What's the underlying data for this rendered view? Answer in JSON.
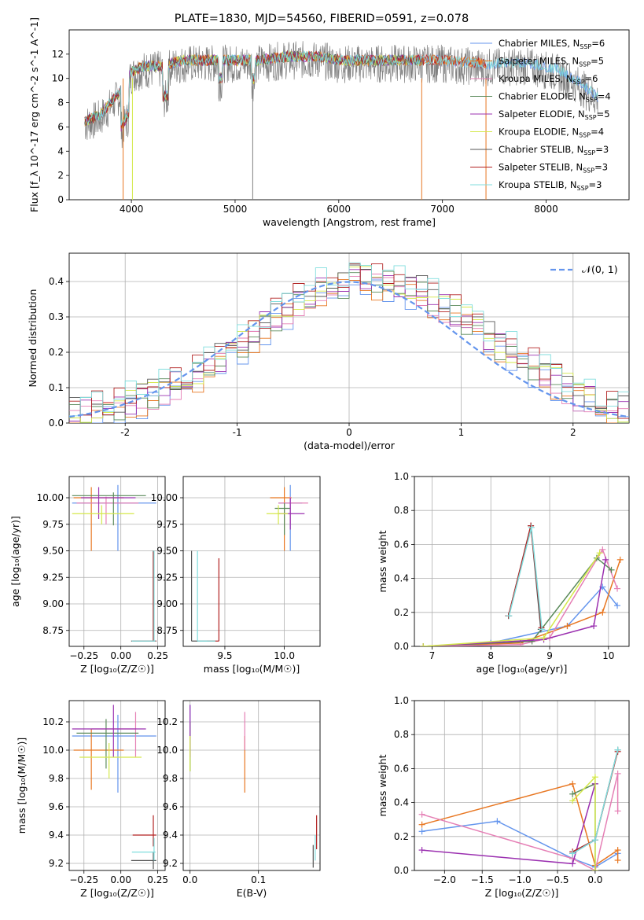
{
  "colors": {
    "series": [
      "#6495ed",
      "#e87722",
      "#e87722",
      "#5a8a5a",
      "#9b30b0",
      "#d4e84a",
      "#555555",
      "#b22222",
      "#80dede"
    ],
    "spec_gray": "#808080",
    "pink": "#e57fb5",
    "purple": "#9b30b0",
    "blue": "#6495ed",
    "orange": "#e87722",
    "yellow": "#d4e84a",
    "green": "#5a8a5a",
    "dark": "#555555",
    "red": "#b22222",
    "cyan": "#80dede",
    "gaussian": "#6495ed",
    "grid": "#b0b0b0"
  },
  "chart_data": [
    {
      "type": "line",
      "title": "PLATE=1830, MJD=54560, FIBERID=0591, z=0.078",
      "xlabel": "wavelength [Angstrom, rest frame]",
      "ylabel": "Flux [f_λ 10^-17 erg cm^-2 s^-1 A^-1]",
      "xlim": [
        3400,
        8800
      ],
      "ylim": [
        0,
        14
      ],
      "xticks": [
        4000,
        5000,
        6000,
        7000,
        8000
      ],
      "yticks": [
        0,
        2,
        4,
        6,
        8,
        10,
        12
      ],
      "grid": false,
      "legend_position": "right",
      "legend": [
        {
          "label": "Chabrier MILES, N",
          "sub": "SSP",
          "n": "=6"
        },
        {
          "label": "Salpeter MILES, N",
          "sub": "SSP",
          "n": "=5"
        },
        {
          "label": "Kroupa MILES, N",
          "sub": "SSP",
          "n": "=6"
        },
        {
          "label": "Chabrier ELODIE, N",
          "sub": "SSP",
          "n": "=4"
        },
        {
          "label": "Salpeter ELODIE, N",
          "sub": "SSP",
          "n": "=5"
        },
        {
          "label": "Kroupa ELODIE, N",
          "sub": "SSP",
          "n": "=4"
        },
        {
          "label": "Chabrier STELIB, N",
          "sub": "SSP",
          "n": "=3"
        },
        {
          "label": "Salpeter STELIB, N",
          "sub": "SSP",
          "n": "=3"
        },
        {
          "label": "Kroupa STELIB, N",
          "sub": "SSP",
          "n": "=3"
        }
      ],
      "spectrum_envelope": {
        "x": [
          3550,
          3700,
          3800,
          3900,
          4000,
          4100,
          4300,
          4500,
          4800,
          5000,
          5200,
          5500,
          5800,
          6000,
          6300,
          6600,
          7000,
          7400,
          7800,
          8100,
          8300,
          8500
        ],
        "y": [
          6.5,
          7.0,
          8.0,
          9.0,
          10.5,
          11.0,
          11.0,
          11.5,
          11.5,
          11.5,
          11.5,
          11.8,
          11.8,
          11.5,
          11.5,
          11.5,
          11.5,
          11.2,
          11.3,
          10.8,
          9.8,
          8.5
        ]
      }
    },
    {
      "type": "bar",
      "title": "",
      "xlabel": "(data-model)/error",
      "ylabel": "Normed distribution",
      "xlim": [
        -2.5,
        2.5
      ],
      "ylim": [
        0,
        0.48
      ],
      "xticks": [
        -2,
        -1,
        0,
        1,
        2
      ],
      "yticks": [
        0.0,
        0.1,
        0.2,
        0.3,
        0.4
      ],
      "grid": true,
      "legend": [
        "𝒩(0, 1)"
      ],
      "legend_position": "top-right",
      "bin_width": 0.1,
      "histogram": [
        0.03,
        0.03,
        0.04,
        0.04,
        0.05,
        0.06,
        0.07,
        0.08,
        0.1,
        0.11,
        0.13,
        0.14,
        0.16,
        0.18,
        0.2,
        0.22,
        0.25,
        0.28,
        0.3,
        0.32,
        0.35,
        0.37,
        0.38,
        0.38,
        0.39,
        0.4,
        0.41,
        0.4,
        0.4,
        0.39,
        0.38,
        0.37,
        0.35,
        0.33,
        0.31,
        0.29,
        0.27,
        0.24,
        0.22,
        0.2,
        0.18,
        0.16,
        0.14,
        0.12,
        0.1,
        0.08,
        0.07,
        0.05,
        0.04,
        0.03
      ]
    },
    {
      "type": "scatter",
      "xlabel": "Z [log₁₀(Z/Z☉)]",
      "ylabel": "age  [log₁₀(age/yr)]",
      "xlim": [
        -0.35,
        0.3
      ],
      "ylim": [
        8.6,
        10.2
      ],
      "xticks": [
        -0.25,
        0.0,
        0.25
      ],
      "xticklabels": [
        "−0.25",
        "0.00",
        "0.25"
      ],
      "yticks": [
        8.75,
        9.0,
        9.25,
        9.5,
        9.75,
        10.0
      ],
      "yticklabels": [
        "8.75",
        "9.00",
        "9.25",
        "9.50",
        "9.75",
        "10.00"
      ],
      "grid": true,
      "errorbars": [
        {
          "x": -0.02,
          "y": 9.95,
          "xerr": [
            0.31,
            0.26
          ],
          "yerr": [
            0.45,
            0.17
          ]
        },
        {
          "x": -0.2,
          "y": 10.0,
          "xerr": [
            0.12,
            0.22
          ],
          "yerr": [
            0.5,
            0.1
          ]
        },
        {
          "x": -0.1,
          "y": 9.95,
          "xerr": [
            0.2,
            0.22
          ],
          "yerr": [
            0.2,
            0.06
          ]
        },
        {
          "x": -0.05,
          "y": 10.02,
          "xerr": [
            0.28,
            0.22
          ],
          "yerr": [
            0.28,
            0.03
          ]
        },
        {
          "x": -0.15,
          "y": 10.0,
          "xerr": [
            0.12,
            0.25
          ],
          "yerr": [
            0.2,
            0.1
          ]
        },
        {
          "x": -0.13,
          "y": 9.85,
          "xerr": [
            0.2,
            0.22
          ],
          "yerr": [
            0.1,
            0.08
          ]
        },
        {
          "x": 0.22,
          "y": 8.65,
          "xerr": [
            0.15,
            0.02
          ],
          "yerr": [
            0.0,
            0.85
          ]
        },
        {
          "x": 0.22,
          "y": 8.65,
          "xerr": [
            0.14,
            0.02
          ],
          "yerr": [
            0.0,
            0.84
          ]
        },
        {
          "x": 0.225,
          "y": 8.65,
          "xerr": [
            0.15,
            0.01
          ],
          "yerr": [
            0.0,
            0.85
          ]
        }
      ]
    },
    {
      "type": "scatter",
      "xlabel": "mass [log₁₀(M/M☉)]",
      "ylabel": "",
      "xlim": [
        9.15,
        10.3
      ],
      "ylim": [
        8.6,
        10.2
      ],
      "xticks": [
        9.5,
        10.0
      ],
      "xticklabels": [
        "9.5",
        "10.0"
      ],
      "yticks": [
        8.75,
        9.0,
        9.25,
        9.5,
        9.75,
        10.0
      ],
      "yticklabels": [
        "8.75",
        "9.00",
        "9.25",
        "9.50",
        "9.75",
        "10.00"
      ],
      "grid": true,
      "errorbars": [
        {
          "x": 10.05,
          "y": 9.95,
          "xerr": [
            0.1,
            0.1
          ],
          "yerr": [
            0.45,
            0.17
          ]
        },
        {
          "x": 10.0,
          "y": 10.0,
          "xerr": [
            0.12,
            0.06
          ],
          "yerr": [
            0.5,
            0.1
          ]
        },
        {
          "x": 10.05,
          "y": 9.95,
          "xerr": [
            0.1,
            0.15
          ],
          "yerr": [
            0.2,
            0.06
          ]
        },
        {
          "x": 10.0,
          "y": 9.9,
          "xerr": [
            0.08,
            0.05
          ],
          "yerr": [
            0.25,
            0.05
          ]
        },
        {
          "x": 10.05,
          "y": 9.85,
          "xerr": [
            0.1,
            0.12
          ],
          "yerr": [
            0.15,
            0.15
          ]
        },
        {
          "x": 9.95,
          "y": 9.85,
          "xerr": [
            0.1,
            0.08
          ],
          "yerr": [
            0.1,
            0.08
          ]
        },
        {
          "x": 9.22,
          "y": 8.65,
          "xerr": [
            0.0,
            0.2
          ],
          "yerr": [
            0.0,
            0.85
          ]
        },
        {
          "x": 9.45,
          "y": 8.65,
          "xerr": [
            0.1,
            0.0
          ],
          "yerr": [
            0.0,
            0.78
          ]
        },
        {
          "x": 9.27,
          "y": 8.65,
          "xerr": [
            0.0,
            0.15
          ],
          "yerr": [
            0.0,
            0.85
          ]
        }
      ]
    },
    {
      "type": "line",
      "xlabel": "age  [log₁₀(age/yr)]",
      "ylabel": "mass weight",
      "xlim": [
        6.7,
        10.35
      ],
      "ylim": [
        0,
        1.0
      ],
      "xticks": [
        7,
        8,
        9,
        10
      ],
      "yticks": [
        0.0,
        0.2,
        0.4,
        0.6,
        0.8,
        1.0
      ],
      "grid": true,
      "series": [
        {
          "x": [
            6.85,
            8.0,
            9.3,
            9.9,
            10.15
          ],
          "y": [
            0.0,
            0.02,
            0.12,
            0.35,
            0.24
          ]
        },
        {
          "x": [
            6.85,
            8.5,
            9.3,
            9.9,
            10.2
          ],
          "y": [
            0.0,
            0.02,
            0.12,
            0.2,
            0.51
          ]
        },
        {
          "x": [
            6.85,
            8.5,
            9.0,
            9.9,
            10.15
          ],
          "y": [
            0.0,
            0.01,
            0.05,
            0.57,
            0.34
          ]
        },
        {
          "x": [
            6.85,
            8.7,
            9.8,
            10.05
          ],
          "y": [
            0.0,
            0.03,
            0.52,
            0.45
          ]
        },
        {
          "x": [
            6.85,
            8.9,
            9.75,
            9.95
          ],
          "y": [
            0.0,
            0.04,
            0.12,
            0.51
          ]
        },
        {
          "x": [
            6.85,
            8.9,
            9.85
          ],
          "y": [
            0.0,
            0.05,
            0.55
          ]
        },
        {
          "x": [
            8.3,
            8.68,
            8.85
          ],
          "y": [
            0.18,
            0.71,
            0.1
          ]
        },
        {
          "x": [
            8.3,
            8.68,
            8.86
          ],
          "y": [
            0.18,
            0.71,
            0.11
          ]
        },
        {
          "x": [
            8.31,
            8.69,
            8.87
          ],
          "y": [
            0.18,
            0.7,
            0.1
          ]
        }
      ]
    },
    {
      "type": "scatter",
      "xlabel": "Z [log₁₀(Z/Z☉)]",
      "ylabel": "mass [log₁₀(M/M☉)]",
      "xlim": [
        -0.35,
        0.3
      ],
      "ylim": [
        9.15,
        10.35
      ],
      "xticks": [
        -0.25,
        0.0,
        0.25
      ],
      "xticklabels": [
        "−0.25",
        "0.00",
        "0.25"
      ],
      "yticks": [
        9.2,
        9.4,
        9.6,
        9.8,
        10.0,
        10.2
      ],
      "yticklabels": [
        "9.2",
        "9.4",
        "9.6",
        "9.8",
        "10.0",
        "10.2"
      ],
      "grid": true,
      "errorbars": [
        {
          "x": -0.02,
          "y": 10.1,
          "xerr": [
            0.31,
            0.26
          ],
          "yerr": [
            0.4,
            0.15
          ]
        },
        {
          "x": -0.2,
          "y": 10.0,
          "xerr": [
            0.12,
            0.22
          ],
          "yerr": [
            0.28,
            0.15
          ]
        },
        {
          "x": 0.1,
          "y": 10.15,
          "xerr": [
            0.3,
            0.0
          ],
          "yerr": [
            0.2,
            0.12
          ]
        },
        {
          "x": -0.1,
          "y": 10.12,
          "xerr": [
            0.2,
            0.22
          ],
          "yerr": [
            0.25,
            0.1
          ]
        },
        {
          "x": -0.05,
          "y": 10.15,
          "xerr": [
            0.28,
            0.22
          ],
          "yerr": [
            0.2,
            0.17
          ]
        },
        {
          "x": -0.08,
          "y": 9.95,
          "xerr": [
            0.2,
            0.22
          ],
          "yerr": [
            0.15,
            0.1
          ]
        },
        {
          "x": 0.22,
          "y": 9.22,
          "xerr": [
            0.15,
            0.02
          ],
          "yerr": [
            0.06,
            0.06
          ]
        },
        {
          "x": 0.22,
          "y": 9.4,
          "xerr": [
            0.14,
            0.02
          ],
          "yerr": [
            0.08,
            0.14
          ]
        },
        {
          "x": 0.225,
          "y": 9.28,
          "xerr": [
            0.15,
            0.01
          ],
          "yerr": [
            0.06,
            0.1
          ]
        }
      ]
    },
    {
      "type": "scatter",
      "xlabel": "E(B-V)",
      "ylabel": "",
      "xlim": [
        -0.01,
        0.19
      ],
      "ylim": [
        9.15,
        10.35
      ],
      "xticks": [
        0.0,
        0.1
      ],
      "xticklabels": [
        "0.0",
        "0.1"
      ],
      "yticks": [
        9.2,
        9.4,
        9.6,
        9.8,
        10.0,
        10.2
      ],
      "yticklabels": [
        "9.2",
        "9.4",
        "9.6",
        "9.8",
        "10.0",
        "10.2"
      ],
      "grid": true,
      "errorbars": [
        {
          "x": 0.0,
          "y": 10.1,
          "xerr": [
            0,
            0
          ],
          "yerr": [
            0.25,
            0.22
          ]
        },
        {
          "x": 0.08,
          "y": 10.0,
          "xerr": [
            0,
            0
          ],
          "yerr": [
            0.3,
            0.1
          ]
        },
        {
          "x": 0.08,
          "y": 10.15,
          "xerr": [
            0,
            0
          ],
          "yerr": [
            0.15,
            0.12
          ]
        },
        {
          "x": 0.0,
          "y": 10.0,
          "xerr": [
            0,
            0
          ],
          "yerr": [
            0.15,
            0.2
          ]
        },
        {
          "x": 0.0,
          "y": 10.15,
          "xerr": [
            0,
            0
          ],
          "yerr": [
            0.2,
            0.17
          ]
        },
        {
          "x": 0.0,
          "y": 9.95,
          "xerr": [
            0,
            0
          ],
          "yerr": [
            0.1,
            0.15
          ]
        },
        {
          "x": 0.18,
          "y": 9.25,
          "xerr": [
            0,
            0
          ],
          "yerr": [
            0.08,
            0.08
          ]
        },
        {
          "x": 0.185,
          "y": 9.4,
          "xerr": [
            0,
            0
          ],
          "yerr": [
            0.1,
            0.14
          ]
        },
        {
          "x": 0.183,
          "y": 9.3,
          "xerr": [
            0,
            0
          ],
          "yerr": [
            0.08,
            0.1
          ]
        }
      ]
    },
    {
      "type": "line",
      "xlabel": "Z [log₁₀(Z/Z☉)]",
      "ylabel": "mass weight",
      "xlim": [
        -2.4,
        0.45
      ],
      "ylim": [
        0,
        1.0
      ],
      "xticks": [
        -2.0,
        -1.5,
        -1.0,
        -0.5,
        0.0
      ],
      "xticklabels": [
        "−2.0",
        "−1.5",
        "−1.0",
        "−0.5",
        "0.0"
      ],
      "yticks": [
        0.0,
        0.2,
        0.4,
        0.6,
        0.8,
        1.0
      ],
      "grid": true,
      "series": [
        {
          "x": [
            -2.3,
            -1.3,
            -0.3,
            0.0,
            0.3
          ],
          "y": [
            0.23,
            0.29,
            0.07,
            0.02,
            0.1
          ]
        },
        {
          "x": [
            -2.3,
            -0.3,
            0.0,
            0.3,
            0.3
          ],
          "y": [
            0.27,
            0.51,
            0.03,
            0.12,
            0.06
          ]
        },
        {
          "x": [
            -2.3,
            -0.3,
            0.0,
            0.3,
            0.3
          ],
          "y": [
            0.33,
            0.07,
            0.0,
            0.57,
            0.35
          ]
        },
        {
          "x": [
            -0.3,
            0.0,
            0.0
          ],
          "y": [
            0.45,
            0.51,
            0.0
          ]
        },
        {
          "x": [
            -2.3,
            -0.3,
            0.0
          ],
          "y": [
            0.12,
            0.04,
            0.51
          ]
        },
        {
          "x": [
            -0.3,
            0.0,
            0.0
          ],
          "y": [
            0.41,
            0.55,
            0.0
          ]
        },
        {
          "x": [
            -0.3,
            0.0,
            0.3
          ],
          "y": [
            0.1,
            0.18,
            0.71
          ]
        },
        {
          "x": [
            -0.3,
            0.0,
            0.3
          ],
          "y": [
            0.11,
            0.18,
            0.7
          ]
        },
        {
          "x": [
            -0.3,
            0.0,
            0.3
          ],
          "y": [
            0.1,
            0.18,
            0.71
          ]
        }
      ]
    }
  ]
}
